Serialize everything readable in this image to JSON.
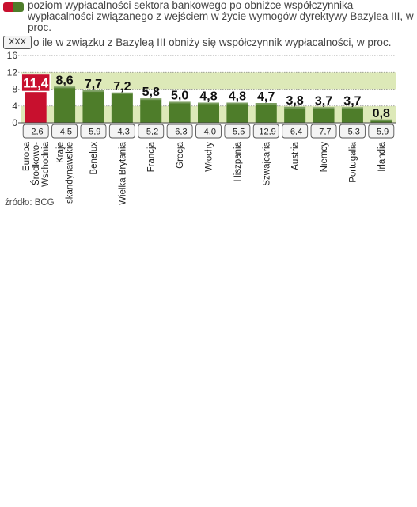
{
  "legend": {
    "main": "poziom wypłacalności sektora bankowego po obniżce współczynnika wypłacalności związanego z wejściem w życie wymogów dyrektywy Bazylea III, w proc.",
    "box_label": "XXX",
    "box_text": "o ile w związku z Bazyleą III obniży się współczynnik wypłacalności, w proc."
  },
  "source": "źródło: BCG",
  "chart_data": {
    "type": "bar",
    "title": "",
    "xlabel": "",
    "ylabel": "",
    "ylim": [
      0,
      16
    ],
    "yticks": [
      "0",
      "4",
      "8",
      "12",
      "16"
    ],
    "grid": true,
    "categories": [
      "Europa Środkowo-Wschodnia",
      "Kraje skandynawskie",
      "Benelux",
      "Wielka Brytania",
      "Francja",
      "Grecja",
      "Włochy",
      "Hiszpania",
      "Szwajcaria",
      "Austria",
      "Niemcy",
      "Portugalia",
      "Irlandia"
    ],
    "category_lines": [
      [
        "Europa",
        "Środkowo-",
        "Wschodnia"
      ],
      [
        "Kraje",
        "skandynawskie"
      ],
      [
        "Benelux"
      ],
      [
        "Wielka Brytania"
      ],
      [
        "Francja"
      ],
      [
        "Grecja"
      ],
      [
        "Włochy"
      ],
      [
        "Hiszpania"
      ],
      [
        "Szwajcaria"
      ],
      [
        "Austria"
      ],
      [
        "Niemcy"
      ],
      [
        "Portugalia"
      ],
      [
        "Irlandia"
      ]
    ],
    "values": [
      11.4,
      8.6,
      7.7,
      7.2,
      5.8,
      5.0,
      4.8,
      4.8,
      4.7,
      3.8,
      3.7,
      3.7,
      0.8
    ],
    "value_labels": [
      "11,4",
      "8,6",
      "7,7",
      "7,2",
      "5,8",
      "5,0",
      "4,8",
      "4,8",
      "4,7",
      "3,8",
      "3,7",
      "3,7",
      "0,8"
    ],
    "reduction_labels": [
      "-2,6",
      "-4,5",
      "-5,9",
      "-4,3",
      "-5,2",
      "-6,3",
      "-4,0",
      "-5,5",
      "-12,9",
      "-6,4",
      "-7,7",
      "-5,3",
      "-5,9"
    ],
    "highlight_index": 0,
    "colors": {
      "highlight": "#c8102e",
      "bar": "#4e7d2a",
      "band": "#dde9b8",
      "box": "#f4f4f4"
    }
  }
}
